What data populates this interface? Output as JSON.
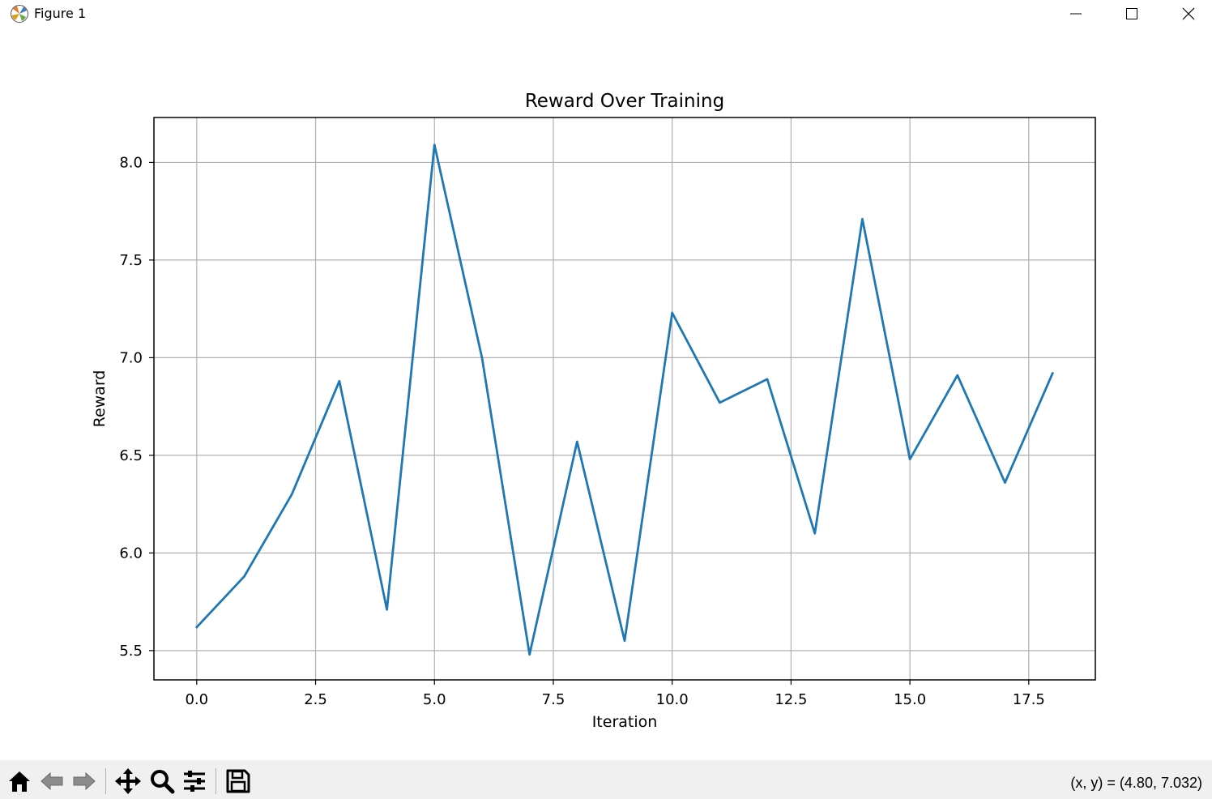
{
  "window": {
    "title": "Figure 1"
  },
  "toolbar": {
    "coords_text": "(x, y) = (4.80, 7.032)",
    "tools": [
      "home-icon",
      "back-icon",
      "forward-icon",
      "pan-icon",
      "zoom-icon",
      "configure-subplots-icon",
      "save-icon"
    ]
  },
  "chart_data": {
    "type": "line",
    "title": "Reward Over Training",
    "xlabel": "Iteration",
    "ylabel": "Reward",
    "x": [
      0,
      1,
      2,
      3,
      4,
      5,
      6,
      7,
      8,
      9,
      10,
      11,
      12,
      13,
      14,
      15,
      16,
      17,
      18
    ],
    "values": [
      5.62,
      5.88,
      6.3,
      6.88,
      5.71,
      8.09,
      7.0,
      5.48,
      6.57,
      5.55,
      7.23,
      6.77,
      6.89,
      6.1,
      7.71,
      6.48,
      6.91,
      6.36,
      6.92
    ],
    "xlim": [
      -0.9,
      18.9
    ],
    "ylim": [
      5.35,
      8.23
    ],
    "xticks": [
      0.0,
      2.5,
      5.0,
      7.5,
      10.0,
      12.5,
      15.0,
      17.5
    ],
    "xtick_labels": [
      "0.0",
      "2.5",
      "5.0",
      "7.5",
      "10.0",
      "12.5",
      "15.0",
      "17.5"
    ],
    "yticks": [
      5.5,
      6.0,
      6.5,
      7.0,
      7.5,
      8.0
    ],
    "ytick_labels": [
      "5.5",
      "6.0",
      "6.5",
      "7.0",
      "7.5",
      "8.0"
    ],
    "grid": true,
    "line_color": "#1f77b4",
    "grid_color": "#b0b0b0"
  }
}
